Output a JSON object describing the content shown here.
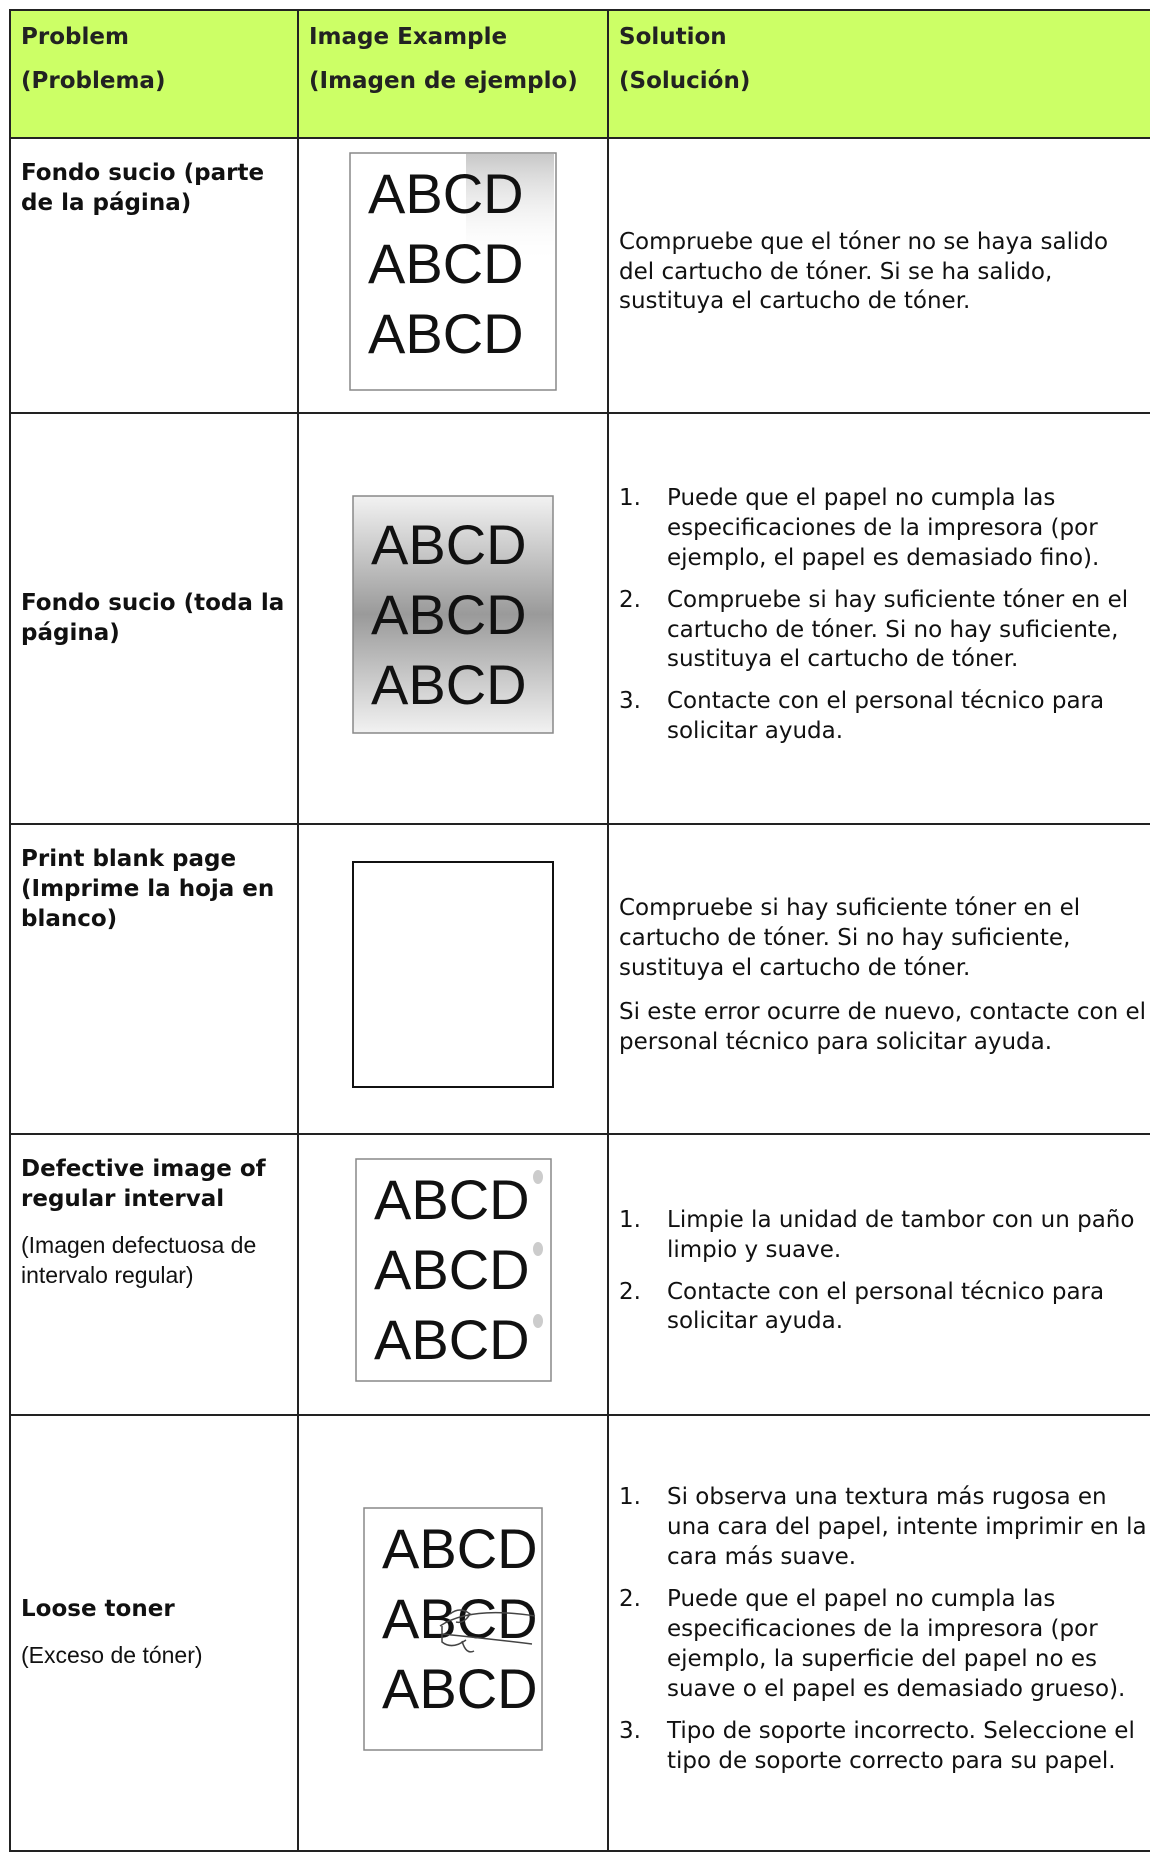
{
  "header": {
    "problem": [
      "Problem",
      "(Problema)"
    ],
    "image": [
      "Image Example",
      "(Imagen de ejemplo)"
    ],
    "solution": [
      "Solution",
      "(Solución)"
    ]
  },
  "rows": [
    {
      "problem": "Fondo sucio (parte de la página)",
      "example": [
        "ABCD",
        "ABCD",
        "ABCD"
      ],
      "solution": {
        "paragraphs": [
          "Compruebe que el tóner no se haya salido del cartucho de tóner. Si se ha salido, sustituya el cartucho de tóner."
        ]
      }
    },
    {
      "problem": "Fondo sucio (toda la página)",
      "example": [
        "ABCD",
        "ABCD",
        "ABCD"
      ],
      "solution": {
        "items": [
          {
            "number": "1.",
            "text": "Puede que el papel no cumpla las especificaciones de la impresora (por ejemplo, el papel es demasiado fino)."
          },
          {
            "number": "2.",
            "text": "Compruebe si hay suficiente tóner en el cartucho de tóner. Si no hay suficiente, sustituya el cartucho de tóner."
          },
          {
            "number": "3.",
            "text": "Contacte con el personal técnico para solicitar ayuda."
          }
        ]
      }
    },
    {
      "problem": "Print blank page (Imprime la hoja en blanco)",
      "example": [],
      "solution": {
        "paragraphs": [
          "Compruebe si hay suficiente tóner en el cartucho de tóner. Si no hay suficiente, sustituya el cartucho de tóner.",
          "Si este error ocurre de nuevo, contacte con el personal técnico para solicitar ayuda."
        ]
      }
    },
    {
      "problem": "Defective image of regular interval",
      "subtitle": "(Imagen defectuosa de intervalo regular)",
      "example": [
        "ABCD",
        "ABCD",
        "ABCD"
      ],
      "solution": {
        "items": [
          {
            "number": "1.",
            "text": "Limpie la unidad de tambor con un paño limpio y suave."
          },
          {
            "number": "2.",
            "text": "Contacte con el personal técnico para solicitar ayuda."
          }
        ]
      }
    },
    {
      "problem": "Loose toner",
      "subtitle": "(Exceso de tóner)",
      "example": [
        "ABCD",
        "ABCD",
        "ABCD"
      ],
      "solution": {
        "items": [
          {
            "number": "1.",
            "text": "Si observa una textura más rugosa en una cara del papel, intente imprimir en la cara más suave."
          },
          {
            "number": "2.",
            "text": "Puede que el papel no cumpla las especificaciones de la impresora (por ejemplo, la superficie del papel no es suave o el papel es demasiado grueso)."
          },
          {
            "number": "3.",
            "text": "Tipo de soporte incorrecto. Seleccione el tipo de soporte correcto para su papel."
          }
        ]
      }
    }
  ]
}
